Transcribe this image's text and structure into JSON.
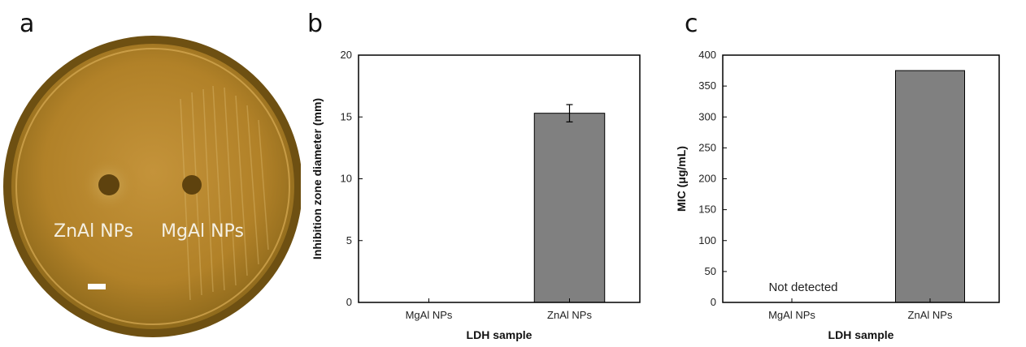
{
  "panels": {
    "a": "a",
    "b": "b",
    "c": "c"
  },
  "photo": {
    "labels": [
      "ZnAl NPs",
      "MgAl NPs"
    ],
    "colors": {
      "plate_rim": "#7a5a14",
      "agar": "#b8862a",
      "agar_dark": "#8f6a1c",
      "halo": "#c8a04c",
      "well": "#5e420e"
    }
  },
  "chart_data": [
    {
      "type": "bar",
      "categories": [
        "MgAl NPs",
        "ZnAl NPs"
      ],
      "values": [
        0,
        15.3
      ],
      "error": [
        0,
        0.7
      ],
      "xlabel": "LDH sample",
      "ylabel": "Inhibition zone diameter (mm)",
      "ylim": [
        0,
        20
      ],
      "yticks": [
        0,
        5,
        10,
        15,
        20
      ],
      "bar_color": "#808080",
      "annotations": []
    },
    {
      "type": "bar",
      "categories": [
        "MgAl  NPs",
        "ZnAl  NPs"
      ],
      "values": [
        0,
        375
      ],
      "xlabel": "LDH sample",
      "ylabel": "MIC (μg/mL)",
      "ylim": [
        0,
        400
      ],
      "yticks": [
        0,
        50,
        100,
        150,
        200,
        250,
        300,
        350,
        400
      ],
      "bar_color": "#808080",
      "annotations": [
        "Not detected"
      ]
    }
  ]
}
